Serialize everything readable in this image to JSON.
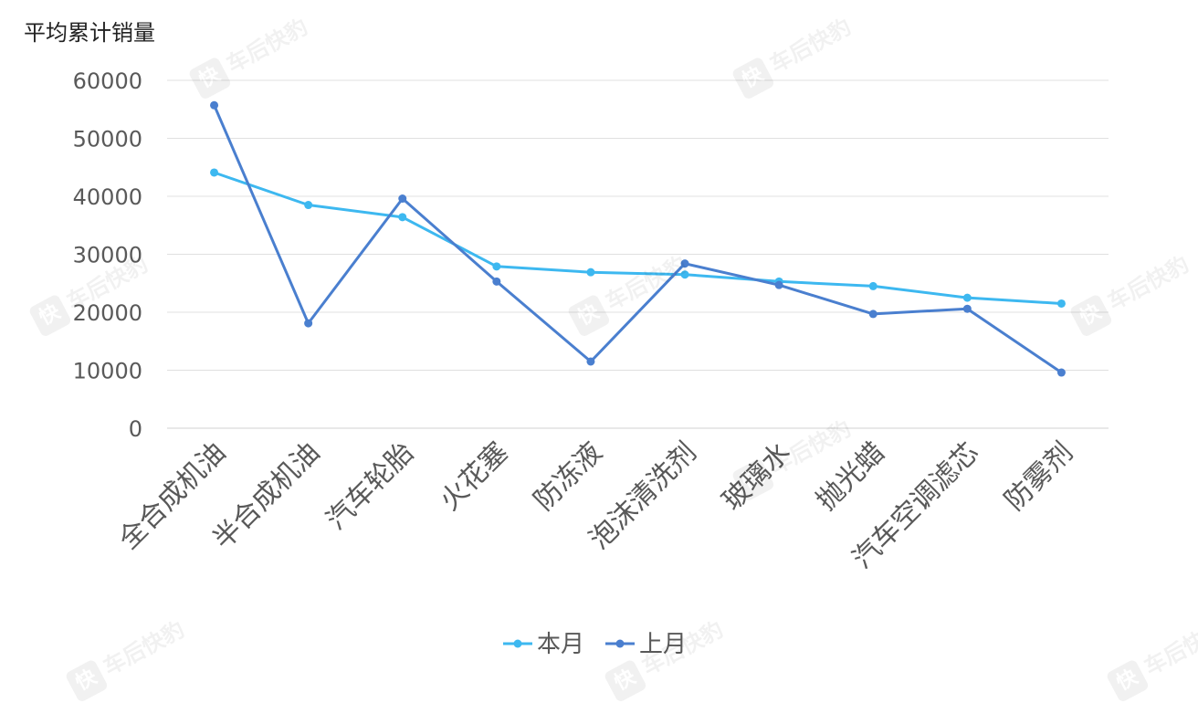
{
  "watermark": {
    "icon_text": "快",
    "text": "车后快豹"
  },
  "chart_data": {
    "type": "line",
    "ylabel": "平均累计销量",
    "xlabel": "",
    "title": "",
    "categories": [
      "全合成机油",
      "半合成机油",
      "汽车轮胎",
      "火花塞",
      "防冻液",
      "泡沫清洗剂",
      "玻璃水",
      "抛光蜡",
      "汽车空调滤芯",
      "防雾剂"
    ],
    "series": [
      {
        "name": "本月",
        "color": "#3db8f0",
        "values": [
          44100,
          38500,
          36400,
          27900,
          26900,
          26500,
          25300,
          24500,
          22500,
          21500
        ]
      },
      {
        "name": "上月",
        "color": "#4a7fcf",
        "values": [
          55700,
          18100,
          39600,
          25300,
          11500,
          28400,
          24700,
          19700,
          20600,
          9600
        ]
      }
    ],
    "ylim": [
      0,
      60000
    ],
    "yticks": [
      "0",
      "10000",
      "20000",
      "30000",
      "40000",
      "50000",
      "60000"
    ],
    "grid": true,
    "legend_position": "bottom-center"
  }
}
